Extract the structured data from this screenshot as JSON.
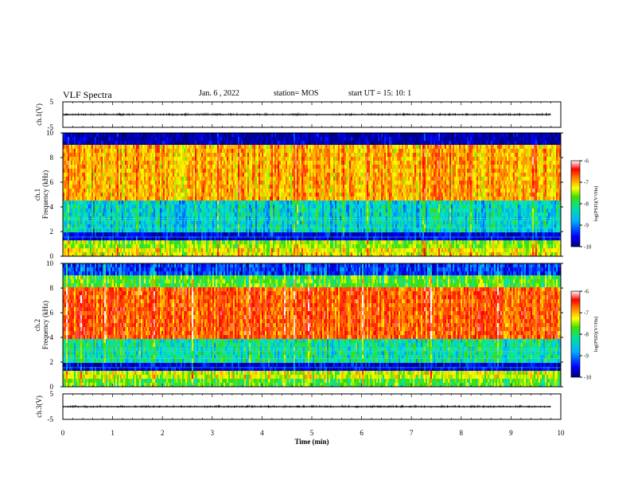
{
  "header": {
    "title": "VLF Spectra",
    "date": "Jan. 6 , 2022",
    "station": "station= MOS",
    "start": "start  UT =   15: 10: 1"
  },
  "chart_data": [
    {
      "type": "line",
      "title": "",
      "xlabel": "",
      "ylabel": "ch.1(V)",
      "xlim": [
        0,
        10
      ],
      "ylim": [
        -5,
        5
      ],
      "yticks": [
        "5",
        "-5"
      ],
      "series": [
        {
          "x": [
            0,
            9.8
          ],
          "values": [
            0,
            0
          ]
        }
      ]
    },
    {
      "type": "heatmap",
      "ylabel": "ch.1",
      "ylabel2": "Frequency (kHz)",
      "xlim": [
        0,
        10
      ],
      "ylim": [
        0,
        10
      ],
      "yticks": [
        "0",
        "2",
        "4",
        "6",
        "8",
        "10"
      ],
      "colorbar": {
        "label": "log(PSD)(V²/Hz)",
        "range": [
          -10,
          -6
        ],
        "ticks": [
          "-6",
          "-7",
          "-8",
          "-9",
          "-10"
        ]
      },
      "bands": [
        {
          "freq_khz": [
            0.0,
            0.5
          ],
          "level": -7.5
        },
        {
          "freq_khz": [
            0.5,
            1.2
          ],
          "level": -7.8
        },
        {
          "freq_khz": [
            1.2,
            2.0
          ],
          "level": -9.6
        },
        {
          "freq_khz": [
            2.0,
            4.5
          ],
          "level": -8.6
        },
        {
          "freq_khz": [
            4.5,
            9.0
          ],
          "level": -7.2
        },
        {
          "freq_khz": [
            9.0,
            10.0
          ],
          "level": -9.8
        }
      ]
    },
    {
      "type": "heatmap",
      "ylabel": "ch.2",
      "ylabel2": "Frequency (kHz)",
      "xlim": [
        0,
        10
      ],
      "ylim": [
        0,
        10
      ],
      "yticks": [
        "0",
        "2",
        "4",
        "6",
        "8",
        "10"
      ],
      "colorbar": {
        "label": "log(PSD)(V²/Hz)",
        "range": [
          -10,
          -6
        ],
        "ticks": [
          "-6",
          "-7",
          "-8",
          "-9",
          "-10"
        ]
      },
      "bands": [
        {
          "freq_khz": [
            0.0,
            0.5
          ],
          "level": -8.0
        },
        {
          "freq_khz": [
            0.5,
            1.3
          ],
          "level": -7.6
        },
        {
          "freq_khz": [
            1.3,
            2.0
          ],
          "level": -9.6
        },
        {
          "freq_khz": [
            2.0,
            4.0
          ],
          "level": -8.4
        },
        {
          "freq_khz": [
            4.0,
            8.0
          ],
          "level": -6.8
        },
        {
          "freq_khz": [
            8.0,
            9.0
          ],
          "level": -8.0
        },
        {
          "freq_khz": [
            9.0,
            10.0
          ],
          "level": -9.3
        }
      ]
    },
    {
      "type": "line",
      "ylabel": "ch.3(V)",
      "xlabel": "Time (min)",
      "xlim": [
        0,
        10
      ],
      "xticks": [
        "0",
        "1",
        "2",
        "3",
        "4",
        "5",
        "6",
        "7",
        "8",
        "9",
        "10"
      ],
      "ylim": [
        -5,
        5
      ],
      "yticks": [
        "5",
        "-5"
      ],
      "series": [
        {
          "x": [
            0,
            9.8
          ],
          "values": [
            0,
            0
          ]
        }
      ]
    }
  ]
}
